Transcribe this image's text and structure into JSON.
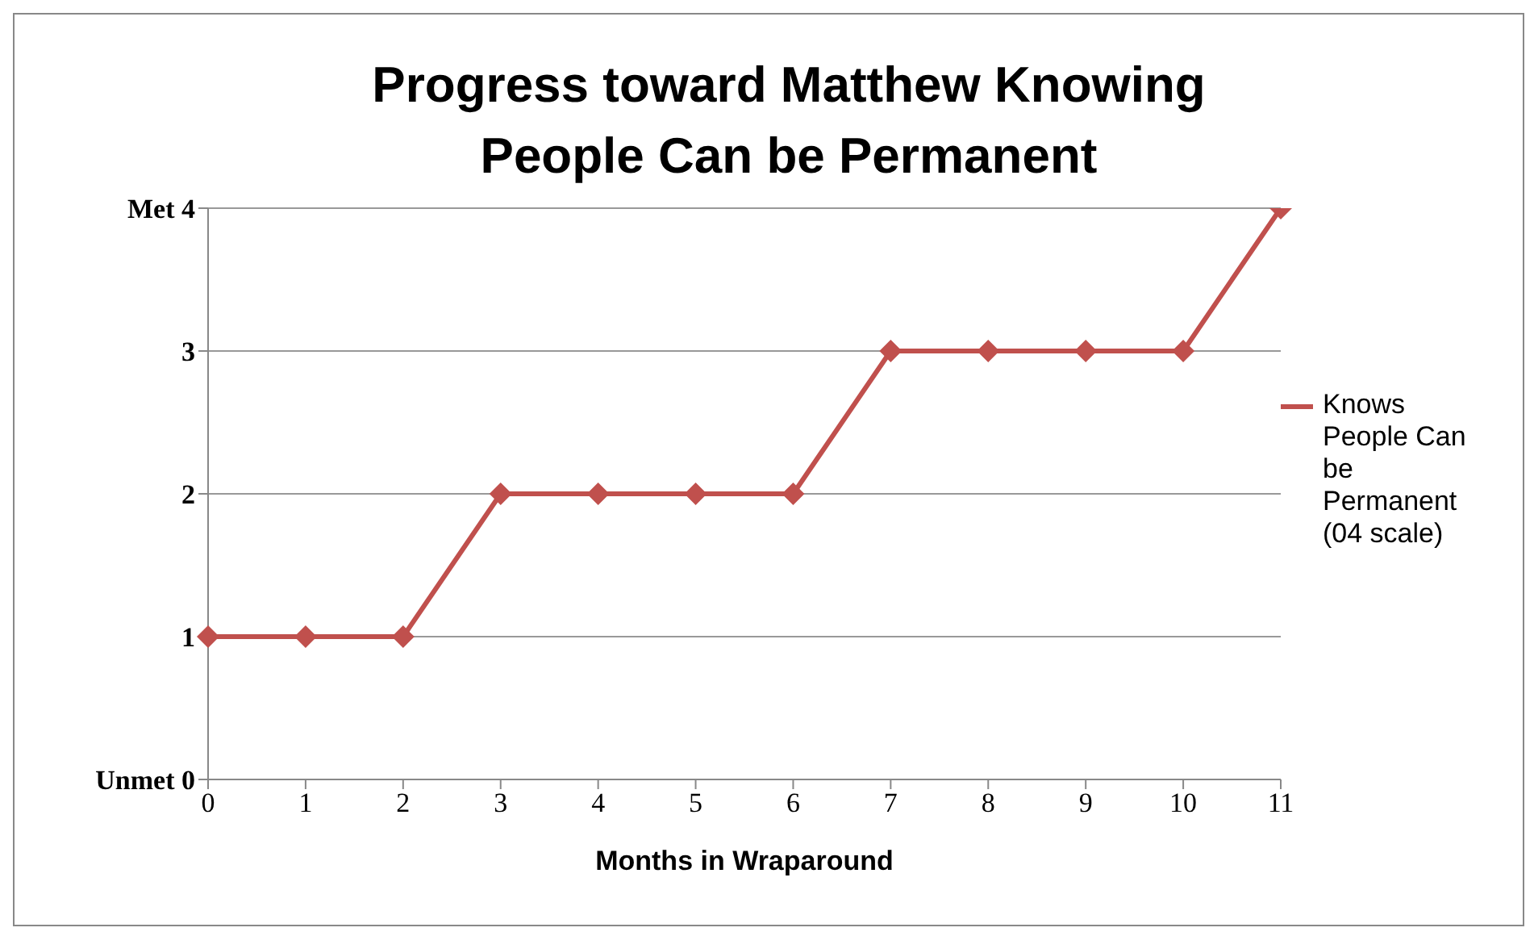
{
  "chart_data": {
    "type": "line",
    "title": "Progress toward Matthew Knowing People Can be Permanent",
    "xlabel": "Months  in Wraparound",
    "categories": [
      "0",
      "1",
      "2",
      "3",
      "4",
      "5",
      "6",
      "7",
      "8",
      "9",
      "10",
      "11"
    ],
    "series": [
      {
        "name": "Knows People Can be Permanent (04 scale)",
        "color": "#c0504d",
        "values": [
          1,
          1,
          1,
          2,
          2,
          2,
          2,
          3,
          3,
          3,
          3,
          4
        ]
      }
    ],
    "ylim": [
      0,
      4
    ],
    "yticks": [
      {
        "value": 0,
        "label": "Unmet 0"
      },
      1,
      2,
      3,
      {
        "value": 4,
        "label": "Met 4"
      }
    ],
    "grid": "y",
    "legend": "right",
    "marker": "diamond",
    "line_style": "solid"
  }
}
